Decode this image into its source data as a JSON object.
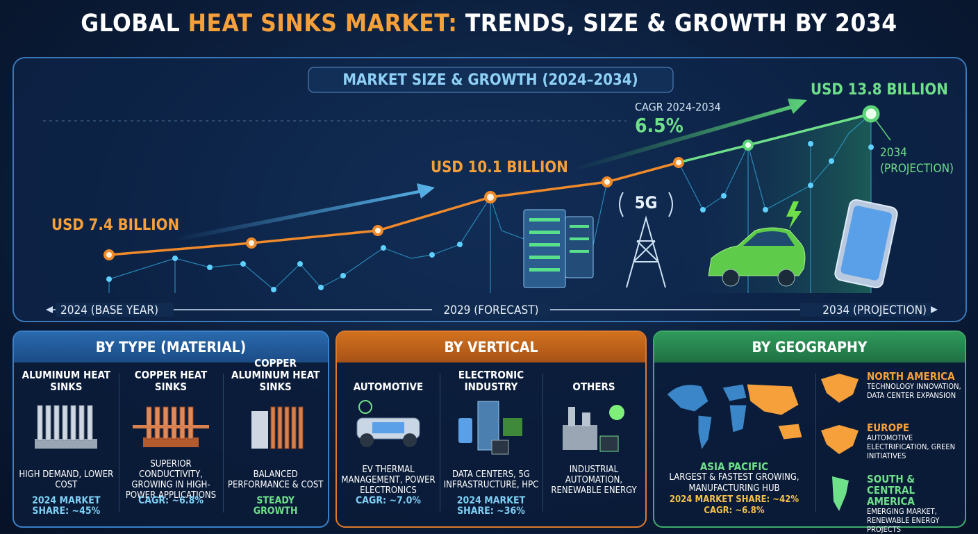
{
  "title": {
    "part1": "GLOBAL",
    "part2": "HEAT SINKS MARKET:",
    "part3": "TRENDS, SIZE & GROWTH BY 2034"
  },
  "market": {
    "heading": "MARKET SIZE & GROWTH (2024–2034)",
    "start_value": "USD 7.4 BILLION",
    "mid_value": "USD 10.1 BILLION",
    "end_value": "USD 13.8 BILLION",
    "cagr_label": "CAGR 2024-2034",
    "cagr": "6.5%",
    "end_note": [
      "2034",
      "(PROJECTION)"
    ],
    "tower_label": "5G",
    "axis_labels": [
      "2024 (BASE YEAR)",
      "2029 (FORECAST)",
      "2034 (PROJECTION)"
    ]
  },
  "by_type": {
    "heading": "BY TYPE (MATERIAL)",
    "items": [
      {
        "name": "ALUMINUM HEAT SINKS",
        "desc": "HIGH DEMAND, LOWER COST",
        "stat": "2024 MARKET SHARE: ~45%"
      },
      {
        "name": "COPPER HEAT SINKS",
        "desc": "SUPERIOR CONDUCTIVITY, GROWING IN HIGH-POWER APPLICATIONS",
        "stat": "CAGR: ~6.8%"
      },
      {
        "name": "COPPER ALUMINUM HEAT SINKS",
        "desc": "BALANCED PERFORMANCE & COST",
        "stat": "STEADY GROWTH"
      }
    ]
  },
  "by_vertical": {
    "heading": "BY VERTICAL",
    "items": [
      {
        "name": "AUTOMOTIVE",
        "desc": "EV THERMAL MANAGEMENT, POWER ELECTRONICS",
        "stat": "CAGR: ~7.0%"
      },
      {
        "name": "ELECTRONIC INDUSTRY",
        "desc": "DATA CENTERS, 5G INFRASTRUCTURE, HPC",
        "stat": "2024 MARKET SHARE: ~36%"
      },
      {
        "name": "OTHERS",
        "desc": "INDUSTRIAL AUTOMATION, RENEWABLE ENERGY"
      }
    ]
  },
  "by_geography": {
    "heading": "BY GEOGRAPHY",
    "main": {
      "name": "ASIA PACIFIC",
      "desc": "LARGEST & FASTEST GROWING, MANUFACTURING HUB",
      "share": "2024 MARKET SHARE: ~42%",
      "cagr": "CAGR: ~6.8%"
    },
    "regions": [
      {
        "name": "NORTH AMERICA",
        "desc": "TECHNOLOGY INNOVATION, DATA CENTER EXPANSION"
      },
      {
        "name": "EUROPE",
        "desc": "AUTOMOTIVE ELECTRIFICATION, GREEN INITIATIVES"
      },
      {
        "name": "SOUTH & CENTRAL AMERICA",
        "desc": "EMERGING MARKET, RENEWABLE ENERGY PROJECTS"
      }
    ]
  }
}
